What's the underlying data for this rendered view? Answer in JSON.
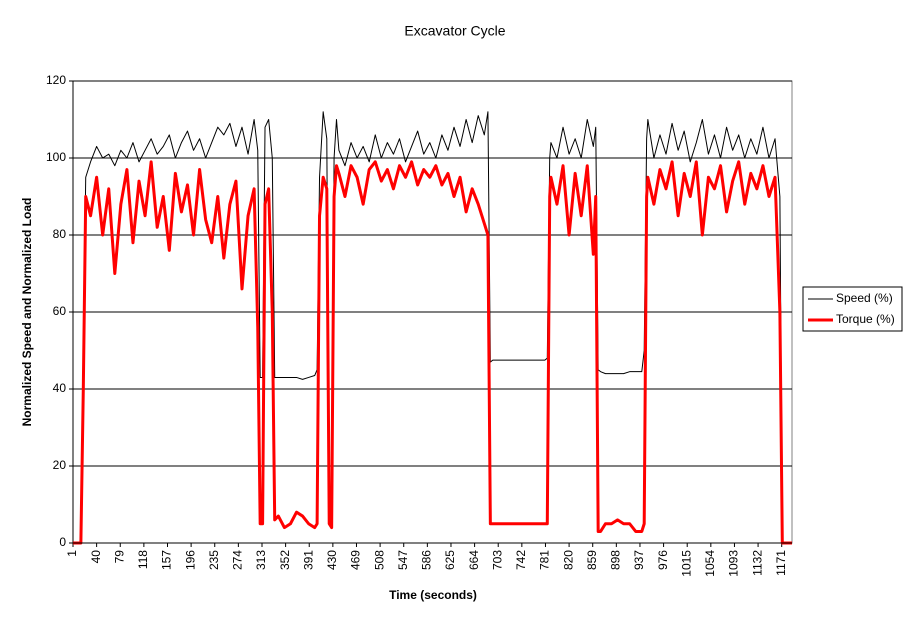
{
  "chart_data": {
    "type": "line",
    "title": "Excavator Cycle",
    "x_label": "Time (seconds)",
    "y_label": "Normalized Speed and Normalized Load",
    "x": [
      1,
      14,
      18,
      22,
      30,
      40,
      50,
      60,
      70,
      80,
      90,
      100,
      110,
      120,
      130,
      140,
      150,
      160,
      170,
      180,
      190,
      200,
      210,
      220,
      230,
      240,
      250,
      260,
      270,
      280,
      290,
      300,
      306,
      310,
      314,
      318,
      324,
      330,
      334,
      340,
      350,
      360,
      370,
      380,
      390,
      400,
      404,
      408,
      414,
      420,
      424,
      428,
      432,
      436,
      440,
      450,
      460,
      470,
      480,
      490,
      500,
      510,
      520,
      530,
      540,
      550,
      560,
      570,
      580,
      590,
      600,
      610,
      620,
      630,
      640,
      650,
      660,
      670,
      680,
      686,
      690,
      694,
      700,
      710,
      720,
      730,
      740,
      750,
      760,
      770,
      780,
      784,
      788,
      790,
      800,
      810,
      820,
      830,
      840,
      850,
      860,
      864,
      868,
      872,
      880,
      890,
      900,
      910,
      920,
      930,
      940,
      944,
      948,
      950,
      960,
      970,
      980,
      990,
      1000,
      1010,
      1020,
      1030,
      1040,
      1050,
      1060,
      1070,
      1080,
      1090,
      1100,
      1110,
      1120,
      1130,
      1140,
      1150,
      1160,
      1168,
      1172,
      1176,
      1188
    ],
    "series": [
      {
        "name": "Speed (%)",
        "color": "#000000",
        "width": 1,
        "values": [
          0,
          0,
          50,
          95,
          99,
          103,
          100,
          101,
          98,
          102,
          100,
          104,
          99,
          102,
          105,
          101,
          103,
          106,
          100,
          104,
          107,
          102,
          105,
          100,
          104,
          108,
          106,
          109,
          103,
          108,
          101,
          110,
          102,
          43,
          43,
          108,
          110,
          100,
          43,
          43,
          43,
          43,
          43,
          42.5,
          43,
          43.5,
          45,
          95,
          112,
          105,
          5,
          5,
          100,
          110,
          102,
          98,
          104,
          100,
          103,
          99,
          106,
          100,
          104,
          101,
          105,
          99,
          103,
          107,
          101,
          104,
          100,
          106,
          102,
          108,
          103,
          110,
          104,
          111,
          106,
          112,
          47,
          47.5,
          47.5,
          47.5,
          47.5,
          47.5,
          47.5,
          47.5,
          47.5,
          47.5,
          47.5,
          48,
          100,
          104,
          100,
          108,
          101,
          105,
          100,
          110,
          103,
          108,
          45,
          44.5,
          44,
          44,
          44,
          44,
          44.5,
          44.5,
          44.5,
          50,
          105,
          110,
          100,
          106,
          101,
          109,
          102,
          107,
          99,
          104,
          110,
          101,
          106,
          100,
          108,
          102,
          106,
          100,
          105,
          101,
          108,
          100,
          105,
          90,
          0,
          0,
          0
        ]
      },
      {
        "name": "Torque (%)",
        "color": "#ff0000",
        "width": 3,
        "values": [
          0,
          0,
          40,
          90,
          85,
          95,
          80,
          92,
          70,
          88,
          97,
          78,
          94,
          85,
          99,
          82,
          90,
          76,
          96,
          86,
          93,
          80,
          97,
          84,
          78,
          90,
          74,
          88,
          94,
          66,
          85,
          92,
          56,
          5,
          5,
          88,
          92,
          60,
          6,
          7,
          4,
          5,
          8,
          7,
          5,
          4,
          5,
          85,
          95,
          92,
          5,
          4,
          90,
          98,
          96,
          90,
          98,
          95,
          88,
          97,
          99,
          94,
          97,
          92,
          98,
          95,
          99,
          93,
          97,
          95,
          98,
          93,
          96,
          90,
          95,
          86,
          92,
          88,
          83,
          80,
          5,
          5,
          5,
          5,
          5,
          5,
          5,
          5,
          5,
          5,
          5,
          5,
          90,
          95,
          88,
          98,
          80,
          96,
          85,
          98,
          75,
          90,
          3,
          3,
          5,
          5,
          6,
          5,
          5,
          3,
          3,
          5,
          90,
          95,
          88,
          97,
          92,
          99,
          85,
          96,
          90,
          99,
          80,
          95,
          92,
          98,
          86,
          94,
          99,
          88,
          96,
          92,
          98,
          90,
          95,
          60,
          0,
          0,
          0
        ]
      }
    ],
    "xlim": [
      1,
      1188
    ],
    "xticks": [
      1,
      40,
      79,
      118,
      157,
      196,
      235,
      274,
      313,
      352,
      391,
      430,
      469,
      508,
      547,
      586,
      625,
      664,
      703,
      742,
      781,
      820,
      859,
      898,
      937,
      976,
      1015,
      1054,
      1093,
      1132,
      1171
    ],
    "ylim": [
      0,
      120
    ],
    "yticks": [
      0,
      20,
      40,
      60,
      80,
      100,
      120
    ],
    "grid": true,
    "legend": "right"
  }
}
